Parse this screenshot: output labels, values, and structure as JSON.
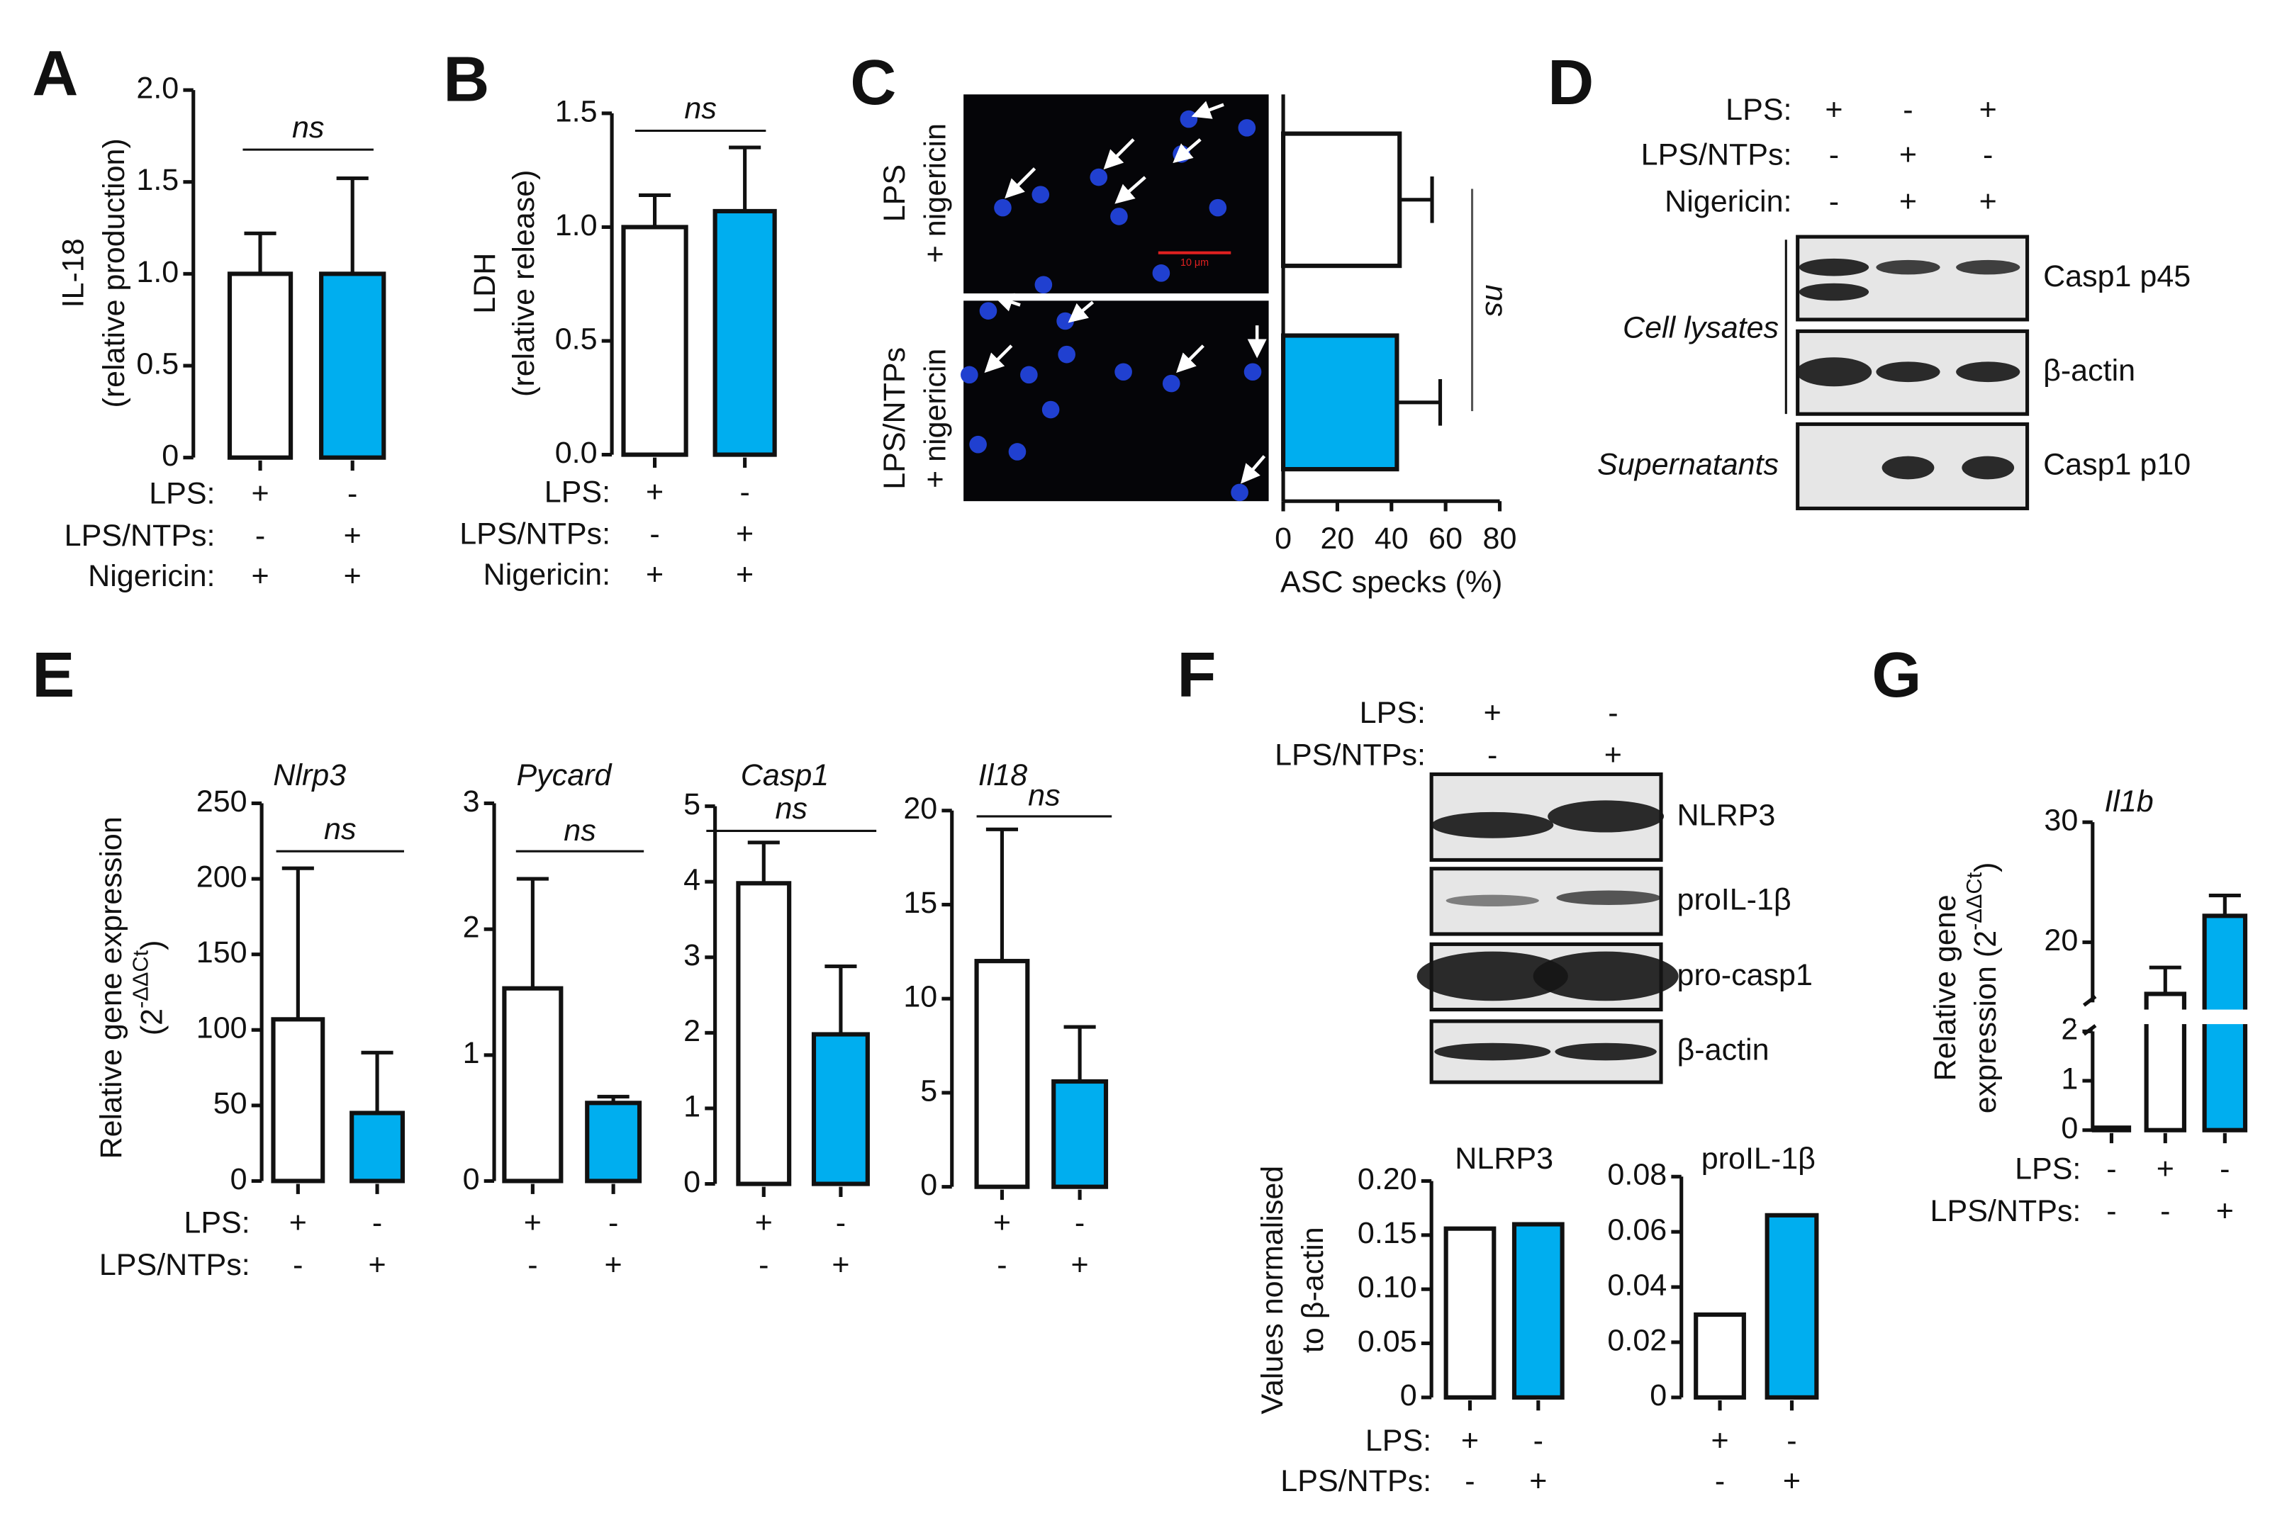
{
  "panel_letters": [
    "A",
    "B",
    "C",
    "D",
    "E",
    "F",
    "G"
  ],
  "chart_data": [
    {
      "type": "bar",
      "ylabel": [
        "IL-18",
        "(relative production)"
      ],
      "values": [
        1.0,
        1.0
      ],
      "errors": [
        0.22,
        0.52
      ],
      "colors": [
        "#ffffff",
        "#00aeef"
      ],
      "ylim": [
        0,
        2
      ],
      "yticks": [
        0,
        0.5,
        {
          "value": 1,
          "label": "1.0"
        },
        1.5,
        {
          "value": 2,
          "label": "2.0"
        }
      ],
      "annotation": "ns",
      "conditions": [
        {
          "name": "LPS:",
          "values": [
            "+",
            "-"
          ]
        },
        {
          "name": "LPS/NTPs:",
          "values": [
            "-",
            "+"
          ]
        },
        {
          "name": "Nigericin:",
          "values": [
            "+",
            "+"
          ]
        }
      ]
    },
    {
      "type": "bar",
      "ylabel": [
        "LDH",
        "(relative release)"
      ],
      "values": [
        1.0,
        1.07
      ],
      "errors": [
        0.14,
        0.28
      ],
      "colors": [
        "#ffffff",
        "#00aeef"
      ],
      "ylim": [
        0,
        1.5
      ],
      "yticks": [
        {
          "value": 0,
          "label": "0.0"
        },
        0.5,
        {
          "value": 1,
          "label": "1.0"
        },
        1.5
      ],
      "annotation": "ns",
      "conditions": [
        {
          "name": "LPS:",
          "values": [
            "+",
            "-"
          ]
        },
        {
          "name": "LPS/NTPs:",
          "values": [
            "-",
            "+"
          ]
        },
        {
          "name": "Nigericin:",
          "values": [
            "+",
            "+"
          ]
        }
      ]
    },
    {
      "type": "hbar",
      "categories": [
        [
          "LPS",
          "+ nigericin"
        ],
        [
          "LPS/NTPs",
          "+ nigericin"
        ]
      ],
      "values": [
        43,
        42
      ],
      "errors": [
        12,
        16
      ],
      "colors": [
        "#ffffff",
        "#00aeef"
      ],
      "xlabel": "ASC specks (%)",
      "xlim": [
        0,
        80
      ],
      "xticks": [
        0,
        20,
        40,
        60,
        80
      ],
      "annotation": "ns",
      "scale_bar": "10 μm"
    },
    {
      "type": "bar",
      "title": "Nlrp3",
      "italic_title": true,
      "ylabel": [
        "Relative gene expression",
        "(2",
        "-ΔΔCt",
        ")"
      ],
      "values": [
        107,
        45
      ],
      "errors": [
        100,
        40
      ],
      "colors": [
        "#ffffff",
        "#00aeef"
      ],
      "ylim": [
        0,
        250
      ],
      "yticks": [
        0,
        50,
        100,
        150,
        200,
        250
      ],
      "annotation": "ns",
      "conditions": [
        {
          "name": "LPS:",
          "values": [
            "+",
            "-"
          ]
        },
        {
          "name": "LPS/NTPs:",
          "values": [
            "-",
            "+"
          ]
        }
      ]
    },
    {
      "type": "bar",
      "title": "Pycard",
      "italic_title": true,
      "values": [
        1.53,
        0.62
      ],
      "errors": [
        0.87,
        0.05
      ],
      "colors": [
        "#ffffff",
        "#00aeef"
      ],
      "ylim": [
        0,
        3
      ],
      "yticks": [
        0,
        1,
        2,
        3
      ],
      "annotation": "ns",
      "conditions": [
        {
          "values": [
            "+",
            "-"
          ]
        },
        {
          "values": [
            "-",
            "+"
          ]
        }
      ]
    },
    {
      "type": "bar",
      "title": "Casp1",
      "italic_title": true,
      "values": [
        3.98,
        1.98
      ],
      "errors": [
        0.54,
        0.9
      ],
      "colors": [
        "#ffffff",
        "#00aeef"
      ],
      "ylim": [
        0,
        5
      ],
      "yticks": [
        0,
        1,
        2,
        3,
        4,
        5
      ],
      "annotation": "ns",
      "conditions": [
        {
          "values": [
            "+",
            "-"
          ]
        },
        {
          "values": [
            "-",
            "+"
          ]
        }
      ]
    },
    {
      "type": "bar",
      "title": "Il18",
      "italic_title": true,
      "values": [
        12.0,
        5.6
      ],
      "errors": [
        7.0,
        2.9
      ],
      "colors": [
        "#ffffff",
        "#00aeef"
      ],
      "ylim": [
        0,
        20
      ],
      "yticks": [
        0,
        5,
        10,
        15,
        20
      ],
      "annotation": "ns",
      "conditions": [
        {
          "values": [
            "+",
            "-"
          ]
        },
        {
          "values": [
            "-",
            "+"
          ]
        }
      ]
    },
    {
      "type": "bar",
      "title": "NLRP3",
      "italic_title": false,
      "ylabel": [
        "Values normalised",
        "to β-actin"
      ],
      "values": [
        0.156,
        0.16
      ],
      "colors": [
        "#ffffff",
        "#00aeef"
      ],
      "ylim": [
        0,
        0.2
      ],
      "yticks": [
        0,
        0.05,
        {
          "value": 0.1,
          "label": "0.10"
        },
        0.15,
        {
          "value": 0.2,
          "label": "0.20"
        }
      ],
      "conditions": [
        {
          "name": "LPS:",
          "values": [
            "+",
            "-"
          ]
        },
        {
          "name": "LPS/NTPs:",
          "values": [
            "-",
            "+"
          ]
        }
      ]
    },
    {
      "type": "bar",
      "title": "proIL-1β",
      "italic_title": false,
      "values": [
        0.03,
        0.066
      ],
      "colors": [
        "#ffffff",
        "#00aeef"
      ],
      "ylim": [
        0,
        0.08
      ],
      "yticks": [
        0,
        0.02,
        0.04,
        0.06,
        0.08
      ],
      "conditions": [
        {
          "values": [
            "+",
            "-"
          ]
        },
        {
          "values": [
            "-",
            "+"
          ]
        }
      ]
    },
    {
      "type": "bar",
      "title": "Il1b",
      "italic_title": true,
      "ylabel": [
        "Relative gene",
        "expression (2",
        "-ΔΔCt",
        ")"
      ],
      "values": [
        0.05,
        15.7,
        22.2
      ],
      "errors": [
        null,
        2.2,
        1.7
      ],
      "colors": [
        "#ffffff",
        "#ffffff",
        "#00aeef"
      ],
      "ylim": [
        0,
        30
      ],
      "ybreak": [
        2,
        15
      ],
      "yticks": [
        0,
        1,
        2,
        20,
        30
      ],
      "conditions": [
        {
          "name": "LPS:",
          "values": [
            "-",
            "+",
            "-"
          ]
        },
        {
          "name": "LPS/NTPs:",
          "values": [
            "-",
            "-",
            "+"
          ]
        }
      ]
    }
  ],
  "western_blots": [
    {
      "conditions": [
        {
          "name": "LPS:",
          "values": [
            "+",
            "-",
            "+"
          ]
        },
        {
          "name": "LPS/NTPs:",
          "values": [
            "-",
            "+",
            "-"
          ]
        },
        {
          "name": "Nigericin:",
          "values": [
            "-",
            "+",
            "+"
          ]
        }
      ],
      "groups": [
        {
          "name": "Cell lysates",
          "rows": [
            "Casp1 p45",
            "β-actin"
          ]
        },
        {
          "name": "Supernatants",
          "rows": [
            "Casp1 p10"
          ]
        }
      ]
    },
    {
      "conditions": [
        {
          "name": "LPS:",
          "values": [
            "+",
            "-"
          ]
        },
        {
          "name": "LPS/NTPs:",
          "values": [
            "-",
            "+"
          ]
        }
      ],
      "rows": [
        "NLRP3",
        "proIL-1β",
        "pro-casp1",
        "β-actin"
      ]
    }
  ]
}
